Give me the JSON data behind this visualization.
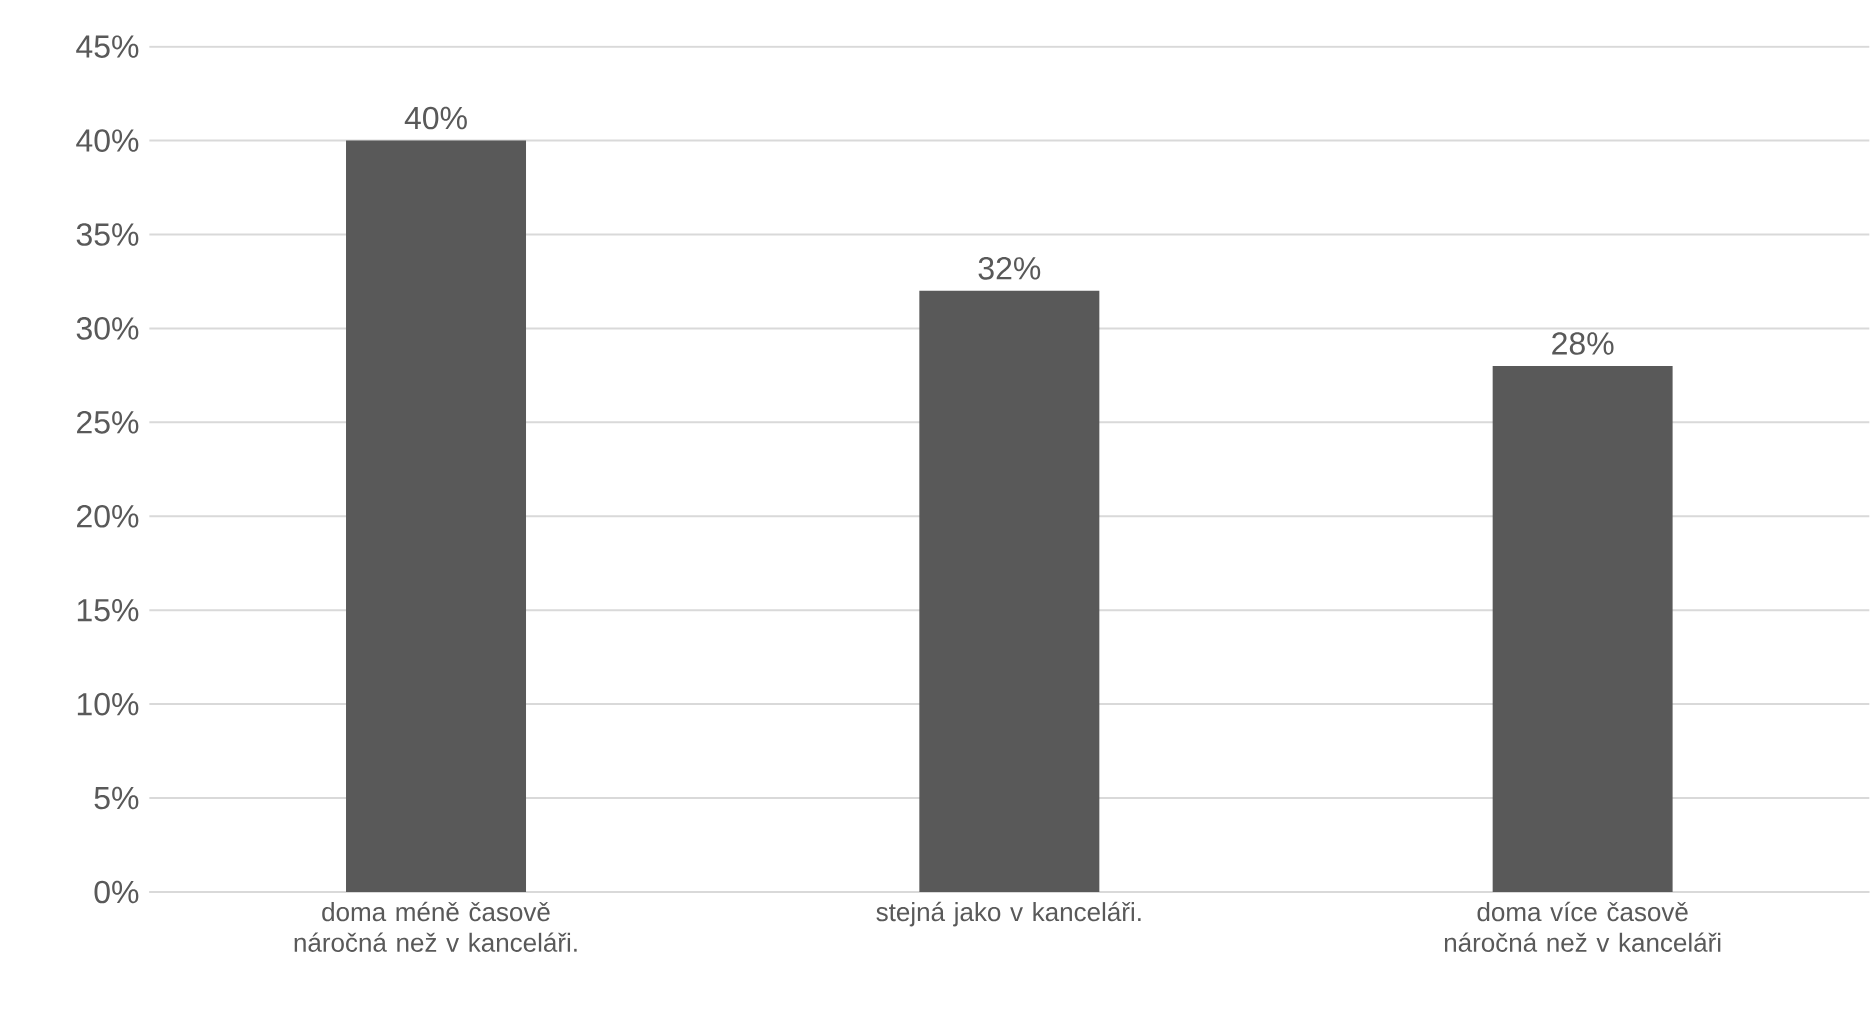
{
  "chart_data": {
    "type": "bar",
    "categories": [
      "doma méně časově náročná než v kanceláři.",
      "stejná jako v kanceláři.",
      "doma více časově náročná než v kanceláři"
    ],
    "values": [
      40,
      32,
      28
    ],
    "color": "#595959",
    "value_labels": [
      "40%",
      "32%",
      "28%"
    ],
    "ylim": [
      0,
      45
    ],
    "yticks": [
      {
        "value": 0,
        "label": "0%"
      },
      {
        "value": 5,
        "label": "5%"
      },
      {
        "value": 10,
        "label": "10%"
      },
      {
        "value": 15,
        "label": "15%"
      },
      {
        "value": 20,
        "label": "20%"
      },
      {
        "value": 25,
        "label": "25%"
      },
      {
        "value": 30,
        "label": "30%"
      },
      {
        "value": 35,
        "label": "35%"
      },
      {
        "value": 40,
        "label": "40%"
      },
      {
        "value": 45,
        "label": "45%"
      }
    ],
    "grid": "y"
  }
}
